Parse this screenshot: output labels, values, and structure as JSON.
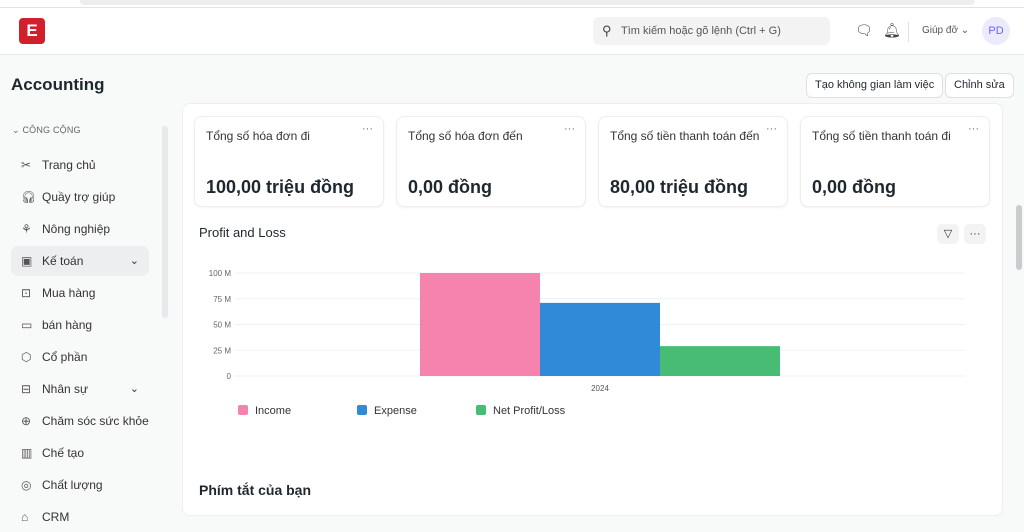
{
  "nav": {
    "logo": "E",
    "search_placeholder": "Tìm kiếm hoặc gõ lệnh (Ctrl + G)",
    "help": "Giúp đỡ",
    "avatar": "PD"
  },
  "page": {
    "title": "Accounting",
    "create_workspace": "Tạo không gian làm việc",
    "edit": "Chỉnh sửa"
  },
  "sidebar": {
    "section": "CÔNG CỘNG",
    "items": [
      {
        "label": "Trang chủ",
        "icon": "tools-icon"
      },
      {
        "label": "Quầy trợ giúp",
        "icon": "headset-icon"
      },
      {
        "label": "Nông nghiệp",
        "icon": "plant-icon"
      },
      {
        "label": "Kế toán",
        "icon": "money-icon",
        "active": true,
        "expandable": true
      },
      {
        "label": "Mua hàng",
        "icon": "bag-icon"
      },
      {
        "label": "bán hàng",
        "icon": "card-icon"
      },
      {
        "label": "Cổ phần",
        "icon": "box-icon"
      },
      {
        "label": "Nhân sự",
        "icon": "briefcase-icon",
        "expandable": true
      },
      {
        "label": "Chăm sóc sức khỏe",
        "icon": "health-icon"
      },
      {
        "label": "Chế tạo",
        "icon": "factory-icon"
      },
      {
        "label": "Chất lượng",
        "icon": "badge-icon"
      },
      {
        "label": "CRM",
        "icon": "crm-icon"
      }
    ]
  },
  "cards": [
    {
      "label": "Tổng số hóa đơn đi",
      "value": "100,00 triệu đồng"
    },
    {
      "label": "Tổng số hóa đơn đến",
      "value": "0,00 đồng"
    },
    {
      "label": "Tổng số tiền thanh toán đến",
      "value": "80,00 triệu đồng"
    },
    {
      "label": "Tổng số tiền thanh toán đi",
      "value": "0,00 đồng"
    }
  ],
  "chart_data": {
    "type": "bar",
    "title": "Profit and Loss",
    "categories": [
      "2024"
    ],
    "series": [
      {
        "name": "Income",
        "values": [
          100
        ],
        "color": "#f683ae"
      },
      {
        "name": "Expense",
        "values": [
          71
        ],
        "color": "#318ad8"
      },
      {
        "name": "Net Profit/Loss",
        "values": [
          29
        ],
        "color": "#48bb74"
      }
    ],
    "yticks": [
      "0",
      "25 M",
      "50 M",
      "75 M",
      "100 M"
    ],
    "ylim": [
      0,
      100
    ],
    "yunit": "M",
    "legend": "bottom-left"
  },
  "shortcuts_title": "Phím tắt của bạn"
}
